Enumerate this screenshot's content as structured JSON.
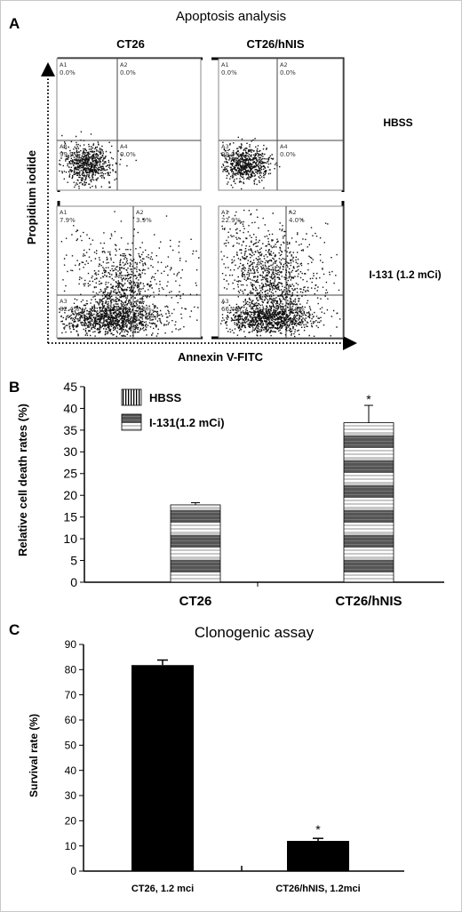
{
  "panel_a": {
    "letter": "A",
    "title": "Apoptosis analysis",
    "column_headers": [
      "CT26",
      "CT26/hNIS"
    ],
    "row_labels": [
      "HBSS",
      "I-131 (1.2 mCi)"
    ],
    "x_axis_label": "Annexin V-FITC",
    "y_axis_label": "Propidium iodide",
    "plots": [
      {
        "condition": "CT26 HBSS",
        "quadrants": [
          {
            "code": "A1",
            "value": "0.0%"
          },
          {
            "code": "A2",
            "value": "0.0%"
          },
          {
            "code": "A3",
            "value": "99.9%"
          },
          {
            "code": "A4",
            "value": "0.0%"
          }
        ]
      },
      {
        "condition": "CT26/hNIS HBSS",
        "quadrants": [
          {
            "code": "A1",
            "value": "0.0%"
          },
          {
            "code": "A2",
            "value": "0.0%"
          },
          {
            "code": "A3",
            "value": "99.9%"
          },
          {
            "code": "A4",
            "value": "0.0%"
          }
        ]
      },
      {
        "condition": "CT26 I-131",
        "quadrants": [
          {
            "code": "A1",
            "value": "7.9%"
          },
          {
            "code": "A2",
            "value": "3.9%"
          },
          {
            "code": "A3",
            "value": "82.4%"
          },
          {
            "code": "A4",
            "value": "5.8%"
          }
        ]
      },
      {
        "condition": "CT26/hNIS I-131",
        "quadrants": [
          {
            "code": "A1",
            "value": "22.9%"
          },
          {
            "code": "A2",
            "value": "4.0%"
          },
          {
            "code": "A3",
            "value": "66.4%"
          },
          {
            "code": "A4",
            "value": "6.8%"
          }
        ]
      }
    ]
  },
  "chart_data": [
    {
      "type": "bar",
      "panel": "B",
      "ylabel": "Relative cell death rates (%)",
      "categories": [
        "CT26",
        "CT26/hNIS"
      ],
      "series": [
        {
          "name": "HBSS",
          "values": [
            0,
            0
          ],
          "pattern": "vertical-lines"
        },
        {
          "name": "I-131(1.2 mCi)",
          "values": [
            17.8,
            36.7
          ],
          "errors": [
            0.5,
            4.0
          ],
          "pattern": "horizontal-bands"
        }
      ],
      "ylim": [
        0,
        45
      ],
      "yticks": [
        0,
        5,
        10,
        15,
        20,
        25,
        30,
        35,
        40,
        45
      ],
      "annotations": [
        {
          "category": "CT26/hNIS",
          "text": "*"
        }
      ],
      "legend": "top-left"
    },
    {
      "type": "bar",
      "panel": "C",
      "title": "Clonogenic assay",
      "ylabel": "Survival rate (%)",
      "categories": [
        "CT26, 1.2 mci",
        "CT26/hNIS, 1.2mci"
      ],
      "values": [
        81.8,
        12.0
      ],
      "errors": [
        2.0,
        1.0
      ],
      "ylim": [
        0,
        90
      ],
      "yticks": [
        0,
        10,
        20,
        30,
        40,
        50,
        60,
        70,
        80,
        90
      ],
      "annotations": [
        {
          "category": "CT26/hNIS, 1.2mci",
          "text": "*"
        }
      ],
      "color": "#000000"
    }
  ]
}
